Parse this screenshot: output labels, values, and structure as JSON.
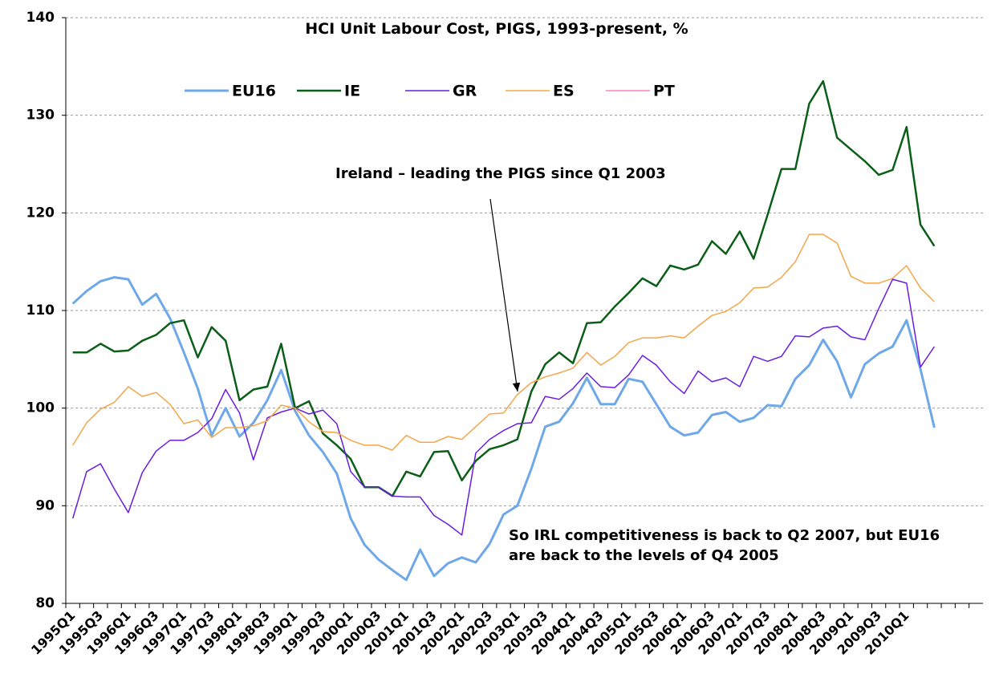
{
  "chart_data": {
    "type": "line",
    "title": "HCI Unit Labour Cost, PIGS, 1993-present, %",
    "annotations": [
      "Ireland – leading the PIGS since Q1 2003",
      "So IRL competitiveness is back to Q2 2007, but EU16",
      "are back to the levels of Q4 2005"
    ],
    "categories": [
      "1995Q1",
      null,
      "1995Q3",
      null,
      "1996Q1",
      null,
      "1996Q3",
      null,
      "1997Q1",
      null,
      "1997Q3",
      null,
      "1998Q1",
      null,
      "1998Q3",
      null,
      "1999Q1",
      null,
      "1999Q3",
      null,
      "2000Q1",
      null,
      "2000Q3",
      null,
      "2001Q1",
      null,
      "2001Q3",
      null,
      "2002Q1",
      null,
      "2002Q3",
      null,
      "2003Q1",
      null,
      "2003Q3",
      null,
      "2004Q1",
      null,
      "2004Q3",
      null,
      "2005Q1",
      null,
      "2005Q3",
      null,
      "2006Q1",
      null,
      "2006Q3",
      null,
      "2007Q1",
      null,
      "2007Q3",
      null,
      "2008Q1",
      null,
      "2008Q3",
      null,
      "2009Q1",
      null,
      "2009Q3",
      null,
      "2010Q1",
      null,
      null,
      null,
      null,
      null
    ],
    "series": [
      {
        "name": "EU16",
        "color": "#6fa8e8",
        "width": 3,
        "values": [
          110.7,
          112,
          113,
          113.4,
          113.2,
          110.6,
          111.7,
          109.2,
          105.7,
          102,
          97.2,
          100,
          97.1,
          98.5,
          100.8,
          103.9,
          99.7,
          97.2,
          95.5,
          93.3,
          88.7,
          86,
          84.5,
          83.4,
          82.4,
          85.5,
          82.8,
          84.1,
          84.7,
          84.2,
          86.1,
          89.1,
          90,
          93.8,
          98.1,
          98.6,
          100.5,
          103.1,
          100.4,
          100.4,
          103,
          102.7,
          100.4,
          98.1,
          97.2,
          97.5,
          99.3,
          99.6,
          98.6,
          99,
          100.3,
          100.2,
          103,
          104.4,
          107,
          104.8,
          101.1,
          104.5,
          105.6,
          106.3,
          109,
          104,
          98,
          null,
          null,
          null
        ]
      },
      {
        "name": "IE",
        "color": "#0b5e17",
        "width": 2.5,
        "values": [
          105.7,
          105.7,
          106.6,
          105.8,
          105.9,
          106.9,
          107.5,
          108.7,
          109,
          105.2,
          108.3,
          106.9,
          100.8,
          101.9,
          102.2,
          106.6,
          100,
          100.7,
          97.4,
          96.2,
          94.8,
          91.9,
          91.9,
          91,
          93.5,
          93,
          95.5,
          95.6,
          92.6,
          94.6,
          95.8,
          96.2,
          96.8,
          101.7,
          104.5,
          105.7,
          104.6,
          108.7,
          108.8,
          110.4,
          111.8,
          113.3,
          112.5,
          114.6,
          114.2,
          114.7,
          117.1,
          115.8,
          118.1,
          115.3,
          119.8,
          124.5,
          124.5,
          131.2,
          133.5,
          127.7,
          126.5,
          125.3,
          123.9,
          124.4,
          128.8,
          118.8,
          116.6,
          null,
          null,
          null
        ]
      },
      {
        "name": "GR",
        "color": "#6a1de0",
        "width": 1.5,
        "values": [
          88.7,
          93.5,
          94.3,
          91.7,
          89.3,
          93.4,
          95.6,
          96.7,
          96.7,
          97.5,
          98.9,
          101.9,
          99.5,
          94.7,
          99,
          99.6,
          100,
          99.4,
          99.8,
          98.4,
          93.5,
          91.9,
          91.9,
          91,
          90.9,
          90.9,
          89,
          88.1,
          87,
          95.4,
          96.8,
          97.7,
          98.4,
          98.5,
          101.2,
          100.9,
          102,
          103.6,
          102.2,
          102.1,
          103.4,
          105.4,
          104.4,
          102.7,
          101.5,
          103.8,
          102.7,
          103.1,
          102.2,
          105.3,
          104.8,
          105.3,
          107.4,
          107.3,
          108.2,
          108.4,
          107.3,
          107,
          110.2,
          113.2,
          112.8,
          104.2,
          106.3,
          null,
          null,
          null
        ]
      },
      {
        "name": "ES",
        "color": "#f5a54a",
        "width": 1.5,
        "values": [
          96.2,
          98.5,
          99.9,
          100.6,
          102.2,
          101.2,
          101.6,
          100.4,
          98.4,
          98.8,
          97,
          98,
          98,
          98.2,
          98.7,
          100.3,
          100,
          98.6,
          97.6,
          97.5,
          96.7,
          96.2,
          96.2,
          95.7,
          97.2,
          96.5,
          96.5,
          97.1,
          96.8,
          98.1,
          99.4,
          99.5,
          101.4,
          102.6,
          103.2,
          103.6,
          104.1,
          105.7,
          104.4,
          105.3,
          106.7,
          107.2,
          107.2,
          107.4,
          107.2,
          108.4,
          109.5,
          109.9,
          110.8,
          112.3,
          112.4,
          113.4,
          115,
          117.8,
          117.8,
          116.9,
          113.5,
          112.8,
          112.8,
          113.3,
          114.6,
          112.3,
          110.9,
          null,
          null,
          null
        ]
      },
      {
        "name": "PT",
        "color": "#ff80c0",
        "width": 1.5,
        "values": [
          null,
          null,
          null,
          null,
          null,
          null,
          null,
          null,
          null,
          null,
          null,
          null,
          null,
          null,
          null,
          null,
          null,
          null,
          null,
          null,
          null,
          null,
          null,
          null,
          null,
          null,
          null,
          null,
          null,
          null,
          null,
          null,
          null,
          null,
          null,
          null,
          null,
          null,
          null,
          null,
          null,
          null,
          null,
          null,
          null,
          null,
          null,
          null,
          null,
          null,
          null,
          null,
          null,
          null,
          null,
          null,
          null,
          null,
          null,
          null,
          null,
          null,
          null,
          null,
          null,
          null
        ]
      }
    ],
    "ylim": [
      80,
      140
    ],
    "yticks": [
      80,
      90,
      100,
      110,
      120,
      130,
      140
    ],
    "grid": true,
    "legend": "top"
  }
}
